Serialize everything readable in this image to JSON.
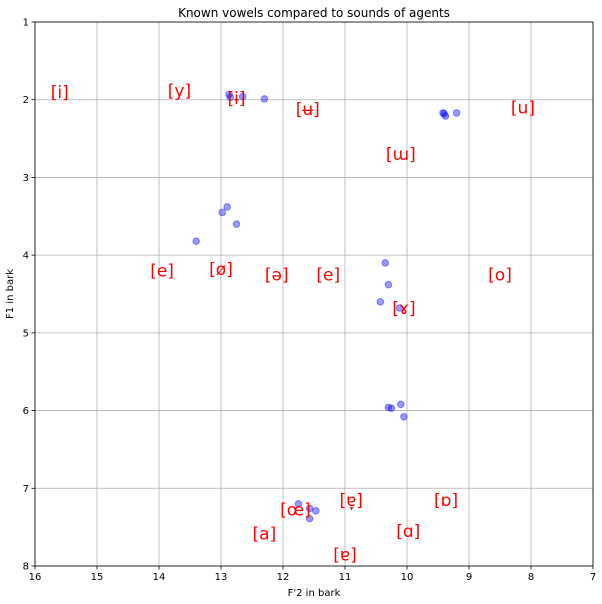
{
  "chart_data": {
    "type": "scatter",
    "title": "Known vowels compared to sounds of agents",
    "xlabel": "F'2 in bark",
    "ylabel": "F1 in bark",
    "xlim": [
      16,
      7
    ],
    "ylim": [
      8,
      1
    ],
    "x_inverted": true,
    "y_inverted": true,
    "grid": true,
    "xticks": [
      16,
      15,
      14,
      13,
      12,
      11,
      10,
      9,
      8,
      7
    ],
    "yticks": [
      1,
      2,
      3,
      4,
      5,
      6,
      7,
      8
    ],
    "point_color": "#0000ff",
    "label_color": "#ff0000",
    "points": [
      {
        "x": 12.87,
        "y": 1.93
      },
      {
        "x": 12.85,
        "y": 1.97
      },
      {
        "x": 12.65,
        "y": 1.96
      },
      {
        "x": 12.3,
        "y": 1.99
      },
      {
        "x": 9.42,
        "y": 2.17
      },
      {
        "x": 9.4,
        "y": 2.18
      },
      {
        "x": 9.38,
        "y": 2.21
      },
      {
        "x": 9.2,
        "y": 2.17
      },
      {
        "x": 12.9,
        "y": 3.38
      },
      {
        "x": 12.98,
        "y": 3.45
      },
      {
        "x": 12.75,
        "y": 3.6
      },
      {
        "x": 13.4,
        "y": 3.82
      },
      {
        "x": 10.35,
        "y": 4.1
      },
      {
        "x": 10.3,
        "y": 4.38
      },
      {
        "x": 10.43,
        "y": 4.6
      },
      {
        "x": 10.12,
        "y": 4.68
      },
      {
        "x": 10.3,
        "y": 5.96
      },
      {
        "x": 10.25,
        "y": 5.97
      },
      {
        "x": 10.1,
        "y": 5.92
      },
      {
        "x": 10.05,
        "y": 6.08
      },
      {
        "x": 11.75,
        "y": 7.2
      },
      {
        "x": 11.57,
        "y": 7.26
      },
      {
        "x": 11.47,
        "y": 7.29
      },
      {
        "x": 11.57,
        "y": 7.39
      }
    ],
    "vowel_labels": [
      {
        "text": "[i]",
        "x": 15.6,
        "y": 1.9
      },
      {
        "text": "[y]",
        "x": 13.67,
        "y": 1.88
      },
      {
        "text": "[ɨ]",
        "x": 12.75,
        "y": 1.98
      },
      {
        "text": "[ʉ]",
        "x": 11.6,
        "y": 2.12
      },
      {
        "text": "[u]",
        "x": 8.13,
        "y": 2.1
      },
      {
        "text": "[ɯ]",
        "x": 10.1,
        "y": 2.7
      },
      {
        "text": "[e]",
        "x": 13.95,
        "y": 4.2
      },
      {
        "text": "[ø]",
        "x": 13.0,
        "y": 4.18
      },
      {
        "text": "[ə]",
        "x": 12.1,
        "y": 4.25
      },
      {
        "text": "[e]",
        "x": 11.27,
        "y": 4.25
      },
      {
        "text": "[o]",
        "x": 8.5,
        "y": 4.25
      },
      {
        "text": "[ɤ]",
        "x": 10.05,
        "y": 4.68
      },
      {
        "text": "[œ]",
        "x": 11.8,
        "y": 7.27
      },
      {
        "text": "[ɐ̞]",
        "x": 10.9,
        "y": 7.15
      },
      {
        "text": "[ɒ]",
        "x": 9.37,
        "y": 7.15
      },
      {
        "text": "[a]",
        "x": 12.3,
        "y": 7.58
      },
      {
        "text": "[ɑ]",
        "x": 9.98,
        "y": 7.55
      },
      {
        "text": "[ɐ]",
        "x": 11.0,
        "y": 7.85
      }
    ]
  }
}
